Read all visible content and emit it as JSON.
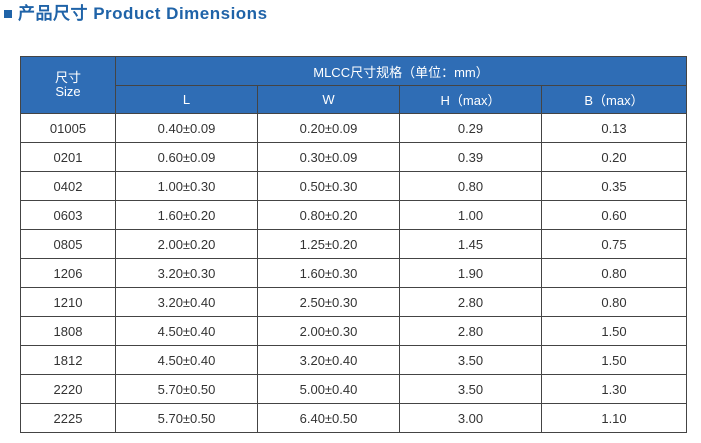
{
  "header": {
    "title": "产品尺寸 Product Dimensions"
  },
  "table": {
    "size_header": [
      "尺寸",
      "Size"
    ],
    "group_header": "MLCC尺寸规格（单位：mm）",
    "columns": [
      "L",
      "W",
      "H（max）",
      "B（max）"
    ],
    "rows": [
      [
        "01005",
        "0.40±0.09",
        "0.20±0.09",
        "0.29",
        "0.13"
      ],
      [
        "0201",
        "0.60±0.09",
        "0.30±0.09",
        "0.39",
        "0.20"
      ],
      [
        "0402",
        "1.00±0.30",
        "0.50±0.30",
        "0.80",
        "0.35"
      ],
      [
        "0603",
        "1.60±0.20",
        "0.80±0.20",
        "1.00",
        "0.60"
      ],
      [
        "0805",
        "2.00±0.20",
        "1.25±0.20",
        "1.45",
        "0.75"
      ],
      [
        "1206",
        "3.20±0.30",
        "1.60±0.30",
        "1.90",
        "0.80"
      ],
      [
        "1210",
        "3.20±0.40",
        "2.50±0.30",
        "2.80",
        "0.80"
      ],
      [
        "1808",
        "4.50±0.40",
        "2.00±0.30",
        "2.80",
        "1.50"
      ],
      [
        "1812",
        "4.50±0.40",
        "3.20±0.40",
        "3.50",
        "1.50"
      ],
      [
        "2220",
        "5.70±0.50",
        "5.00±0.40",
        "3.50",
        "1.30"
      ],
      [
        "2225",
        "5.70±0.50",
        "6.40±0.50",
        "3.00",
        "1.10"
      ]
    ]
  }
}
